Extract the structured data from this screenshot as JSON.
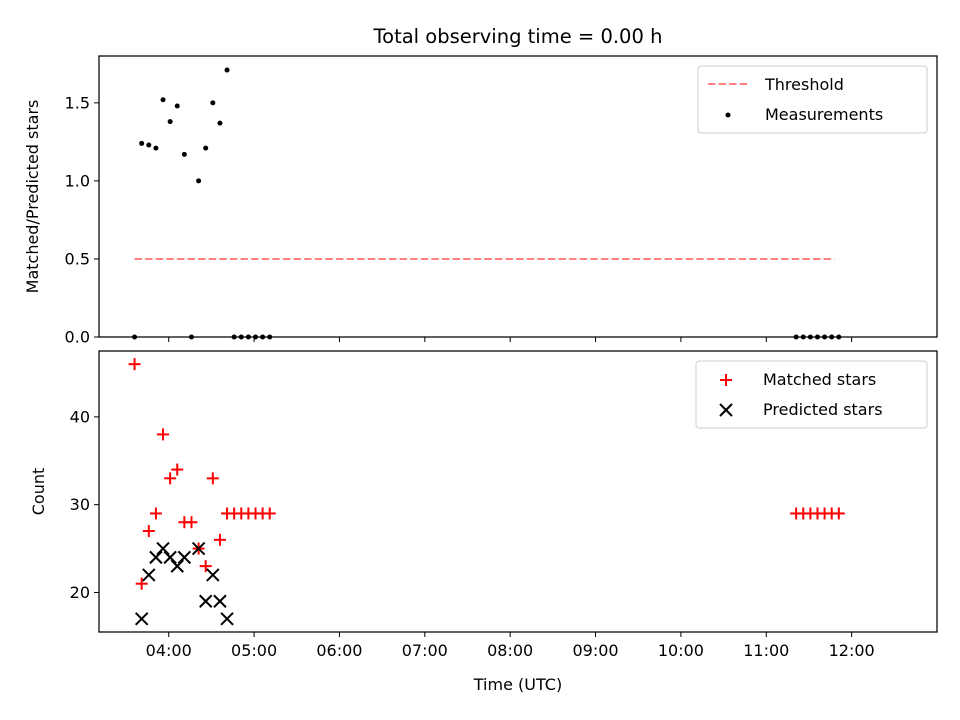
{
  "chart_data": {
    "title": "Total observing time = 0.00 h",
    "x_axis": {
      "label": "Time (UTC)",
      "range_minutes": [
        191,
        780
      ],
      "tick_minutes": [
        240,
        300,
        360,
        420,
        480,
        540,
        600,
        660,
        720
      ],
      "tick_labels": [
        "04:00",
        "05:00",
        "06:00",
        "07:00",
        "08:00",
        "09:00",
        "10:00",
        "11:00",
        "12:00"
      ]
    },
    "panels": [
      {
        "type": "scatter",
        "ylabel": "Matched/Predicted stars",
        "ylim": [
          0.0,
          1.8
        ],
        "yticks": [
          0.0,
          0.5,
          1.0,
          1.5
        ],
        "ytick_labels": [
          "0.0",
          "0.5",
          "1.0",
          "1.5"
        ],
        "grid": false,
        "legend_position": "top-right",
        "legend": [
          {
            "label": "Threshold",
            "marker": "dashed-line",
            "color": "#ff8080"
          },
          {
            "label": "Measurements",
            "marker": "dot",
            "color": "#000000"
          }
        ],
        "threshold": {
          "y": 0.5,
          "x_range": [
            216,
            708
          ]
        },
        "measurements": {
          "x": [
            216,
            221,
            226,
            231,
            236,
            241,
            246,
            251,
            256,
            261,
            266,
            271,
            276,
            281,
            286,
            291,
            296,
            301,
            306,
            311,
            681,
            686,
            691,
            696,
            701,
            706,
            711
          ],
          "y": [
            0.0,
            1.24,
            1.23,
            1.21,
            1.52,
            1.38,
            1.48,
            1.17,
            0.0,
            1.0,
            1.21,
            1.5,
            1.37,
            1.71,
            0.0,
            0.0,
            0.0,
            0.0,
            0.0,
            0.0,
            0.0,
            0.0,
            0.0,
            0.0,
            0.0,
            0.0,
            0.0
          ]
        }
      },
      {
        "type": "scatter",
        "ylabel": "Count",
        "ylim": [
          15.5,
          47.5
        ],
        "yticks": [
          20,
          30,
          40
        ],
        "ytick_labels": [
          "20",
          "30",
          "40"
        ],
        "grid": false,
        "legend_position": "top-right",
        "series": [
          {
            "name": "Matched stars",
            "marker": "plus",
            "color": "#ff0000",
            "x": [
              216,
              221,
              226,
              231,
              236,
              241,
              246,
              251,
              256,
              261,
              266,
              271,
              276,
              281,
              286,
              291,
              296,
              301,
              306,
              311,
              681,
              686,
              691,
              696,
              701,
              706,
              711
            ],
            "y": [
              46,
              21,
              27,
              29,
              38,
              33,
              34,
              28,
              28,
              25,
              23,
              33,
              26,
              29,
              29,
              29,
              29,
              29,
              29,
              29,
              29,
              29,
              29,
              29,
              29,
              29,
              29
            ]
          },
          {
            "name": "Predicted stars",
            "marker": "x",
            "color": "#000000",
            "x": [
              221,
              226,
              231,
              236,
              241,
              246,
              251,
              261,
              266,
              271,
              276,
              281
            ],
            "y": [
              17,
              22,
              24,
              25,
              24,
              23,
              24,
              25,
              19,
              22,
              19,
              17
            ]
          }
        ]
      }
    ]
  }
}
